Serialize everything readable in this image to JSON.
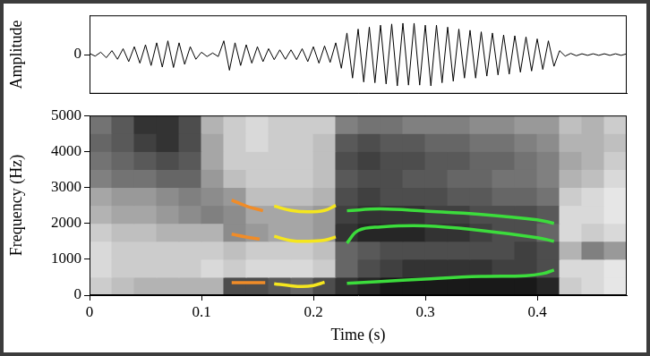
{
  "chart_data": [
    {
      "type": "line",
      "y_label": "Amplitude",
      "xlim": [
        0,
        0.48
      ],
      "ylim": [
        -1,
        1
      ],
      "yticks": [
        0
      ],
      "tick_labels": "y",
      "grid": false,
      "x": [
        0,
        0.005,
        0.01,
        0.015,
        0.02,
        0.025,
        0.03,
        0.035,
        0.04,
        0.045,
        0.05,
        0.055,
        0.06,
        0.065,
        0.07,
        0.075,
        0.08,
        0.085,
        0.09,
        0.095,
        0.1,
        0.105,
        0.11,
        0.115,
        0.12,
        0.125,
        0.13,
        0.135,
        0.14,
        0.145,
        0.15,
        0.155,
        0.16,
        0.165,
        0.17,
        0.175,
        0.18,
        0.185,
        0.19,
        0.195,
        0.2,
        0.205,
        0.21,
        0.215,
        0.22,
        0.225,
        0.23,
        0.235,
        0.24,
        0.245,
        0.25,
        0.255,
        0.26,
        0.265,
        0.27,
        0.275,
        0.28,
        0.285,
        0.29,
        0.295,
        0.3,
        0.305,
        0.31,
        0.315,
        0.32,
        0.325,
        0.33,
        0.335,
        0.34,
        0.345,
        0.35,
        0.355,
        0.36,
        0.365,
        0.37,
        0.375,
        0.38,
        0.385,
        0.39,
        0.395,
        0.4,
        0.405,
        0.41,
        0.415,
        0.42,
        0.425,
        0.43,
        0.435,
        0.44,
        0.445,
        0.45,
        0.455,
        0.46,
        0.465,
        0.47,
        0.475,
        0.48
      ],
      "series": [
        {
          "color": "#000000",
          "values": [
            0.03,
            -0.04,
            0.06,
            -0.08,
            0.1,
            -0.12,
            0.15,
            -0.18,
            0.2,
            -0.22,
            0.25,
            -0.28,
            0.3,
            -0.32,
            0.35,
            -0.33,
            0.3,
            -0.25,
            0.2,
            -0.12,
            0.06,
            -0.05,
            0.04,
            -0.05,
            0.35,
            -0.4,
            0.3,
            -0.28,
            0.25,
            -0.22,
            0.2,
            -0.18,
            0.15,
            -0.13,
            0.12,
            -0.12,
            0.12,
            -0.13,
            0.15,
            -0.18,
            0.2,
            -0.22,
            0.22,
            -0.2,
            0.3,
            -0.35,
            0.55,
            -0.6,
            0.65,
            -0.7,
            0.7,
            -0.72,
            0.75,
            -0.75,
            0.78,
            -0.8,
            0.8,
            -0.78,
            0.8,
            -0.78,
            0.75,
            -0.8,
            0.75,
            -0.72,
            0.7,
            -0.68,
            0.65,
            -0.6,
            0.62,
            -0.6,
            0.58,
            -0.55,
            0.55,
            -0.52,
            0.5,
            -0.5,
            0.48,
            -0.45,
            0.45,
            -0.42,
            0.4,
            -0.38,
            0.35,
            -0.3,
            0.1,
            -0.04,
            0.03,
            -0.03,
            0.02,
            -0.02,
            0.02,
            -0.02,
            0.02,
            -0.02,
            0.02,
            -0.02,
            0.02
          ]
        }
      ]
    },
    {
      "type": "heatmap",
      "x_label": "Time (s)",
      "y_label": "Frequency (Hz)",
      "xlim": [
        0,
        0.48
      ],
      "ylim": [
        0,
        5000
      ],
      "xticks": [
        0,
        0.1,
        0.2,
        0.3,
        0.4
      ],
      "yticks": [
        0,
        1000,
        2000,
        3000,
        4000,
        5000
      ],
      "grid": false,
      "cells": [
        [
          0.2,
          0.25,
          0.3,
          0.3,
          0.3,
          0.3,
          0.7,
          0.7,
          0.65,
          0.6,
          0.7,
          0.8,
          0.85,
          0.9,
          0.9,
          0.9,
          0.9,
          0.9,
          0.9,
          0.9,
          0.85,
          0.2,
          0.15,
          0.1
        ],
        [
          0.15,
          0.2,
          0.2,
          0.2,
          0.2,
          0.15,
          0.2,
          0.15,
          0.15,
          0.15,
          0.2,
          0.6,
          0.7,
          0.75,
          0.8,
          0.8,
          0.8,
          0.8,
          0.75,
          0.75,
          0.7,
          0.15,
          0.15,
          0.1
        ],
        [
          0.15,
          0.2,
          0.2,
          0.2,
          0.2,
          0.2,
          0.25,
          0.2,
          0.2,
          0.2,
          0.25,
          0.6,
          0.65,
          0.7,
          0.7,
          0.7,
          0.7,
          0.7,
          0.7,
          0.75,
          0.7,
          0.3,
          0.5,
          0.4
        ],
        [
          0.2,
          0.25,
          0.25,
          0.3,
          0.3,
          0.3,
          0.45,
          0.4,
          0.35,
          0.35,
          0.4,
          0.8,
          0.85,
          0.85,
          0.85,
          0.8,
          0.8,
          0.75,
          0.7,
          0.7,
          0.6,
          0.15,
          0.2,
          0.15
        ],
        [
          0.3,
          0.35,
          0.35,
          0.4,
          0.45,
          0.5,
          0.45,
          0.35,
          0.35,
          0.35,
          0.4,
          0.75,
          0.8,
          0.8,
          0.8,
          0.75,
          0.75,
          0.7,
          0.7,
          0.7,
          0.65,
          0.15,
          0.15,
          0.1
        ],
        [
          0.35,
          0.4,
          0.4,
          0.45,
          0.5,
          0.45,
          0.4,
          0.25,
          0.25,
          0.25,
          0.3,
          0.7,
          0.75,
          0.7,
          0.7,
          0.7,
          0.65,
          0.65,
          0.6,
          0.6,
          0.55,
          0.2,
          0.15,
          0.1
        ],
        [
          0.5,
          0.55,
          0.55,
          0.6,
          0.6,
          0.4,
          0.25,
          0.2,
          0.2,
          0.2,
          0.25,
          0.65,
          0.7,
          0.7,
          0.65,
          0.65,
          0.6,
          0.6,
          0.55,
          0.55,
          0.5,
          0.3,
          0.25,
          0.15
        ],
        [
          0.55,
          0.6,
          0.65,
          0.7,
          0.65,
          0.35,
          0.2,
          0.2,
          0.2,
          0.2,
          0.25,
          0.7,
          0.75,
          0.7,
          0.7,
          0.65,
          0.65,
          0.6,
          0.6,
          0.55,
          0.5,
          0.35,
          0.3,
          0.2
        ],
        [
          0.6,
          0.65,
          0.75,
          0.8,
          0.7,
          0.35,
          0.2,
          0.15,
          0.2,
          0.2,
          0.25,
          0.65,
          0.7,
          0.65,
          0.65,
          0.6,
          0.6,
          0.55,
          0.55,
          0.5,
          0.45,
          0.3,
          0.3,
          0.25
        ],
        [
          0.55,
          0.65,
          0.8,
          0.8,
          0.7,
          0.3,
          0.2,
          0.15,
          0.2,
          0.2,
          0.2,
          0.5,
          0.55,
          0.55,
          0.5,
          0.5,
          0.5,
          0.45,
          0.45,
          0.4,
          0.4,
          0.25,
          0.3,
          0.2
        ]
      ],
      "series": [
        {
          "type": "line",
          "color": "#f08c28",
          "x": [
            0.127,
            0.14,
            0.155
          ],
          "values": [
            2650,
            2480,
            2350
          ]
        },
        {
          "type": "line",
          "color": "#f08c28",
          "x": [
            0.127,
            0.14,
            0.152
          ],
          "values": [
            1700,
            1620,
            1560
          ]
        },
        {
          "type": "line",
          "color": "#f08c28",
          "x": [
            0.127,
            0.14,
            0.157
          ],
          "values": [
            350,
            350,
            350
          ]
        },
        {
          "type": "line",
          "color": "#f5e61e",
          "x": [
            0.165,
            0.18,
            0.195,
            0.21,
            0.22
          ],
          "values": [
            2480,
            2360,
            2320,
            2360,
            2500
          ]
        },
        {
          "type": "line",
          "color": "#f5e61e",
          "x": [
            0.165,
            0.18,
            0.195,
            0.21,
            0.22
          ],
          "values": [
            1640,
            1520,
            1500,
            1530,
            1620
          ]
        },
        {
          "type": "line",
          "color": "#f5e61e",
          "x": [
            0.165,
            0.18,
            0.19,
            0.2,
            0.21
          ],
          "values": [
            320,
            260,
            240,
            270,
            360
          ]
        },
        {
          "type": "line",
          "color": "#3cdc3c",
          "x": [
            0.23,
            0.26,
            0.3,
            0.35,
            0.4,
            0.415
          ],
          "values": [
            2350,
            2400,
            2340,
            2250,
            2100,
            2000
          ]
        },
        {
          "type": "line",
          "color": "#3cdc3c",
          "x": [
            0.23,
            0.24,
            0.26,
            0.3,
            0.35,
            0.4,
            0.415
          ],
          "values": [
            1450,
            1800,
            1900,
            1930,
            1800,
            1600,
            1500
          ]
        },
        {
          "type": "line",
          "color": "#3cdc3c",
          "x": [
            0.23,
            0.26,
            0.3,
            0.35,
            0.39,
            0.405,
            0.415
          ],
          "values": [
            330,
            380,
            450,
            520,
            540,
            600,
            700
          ]
        }
      ]
    }
  ]
}
